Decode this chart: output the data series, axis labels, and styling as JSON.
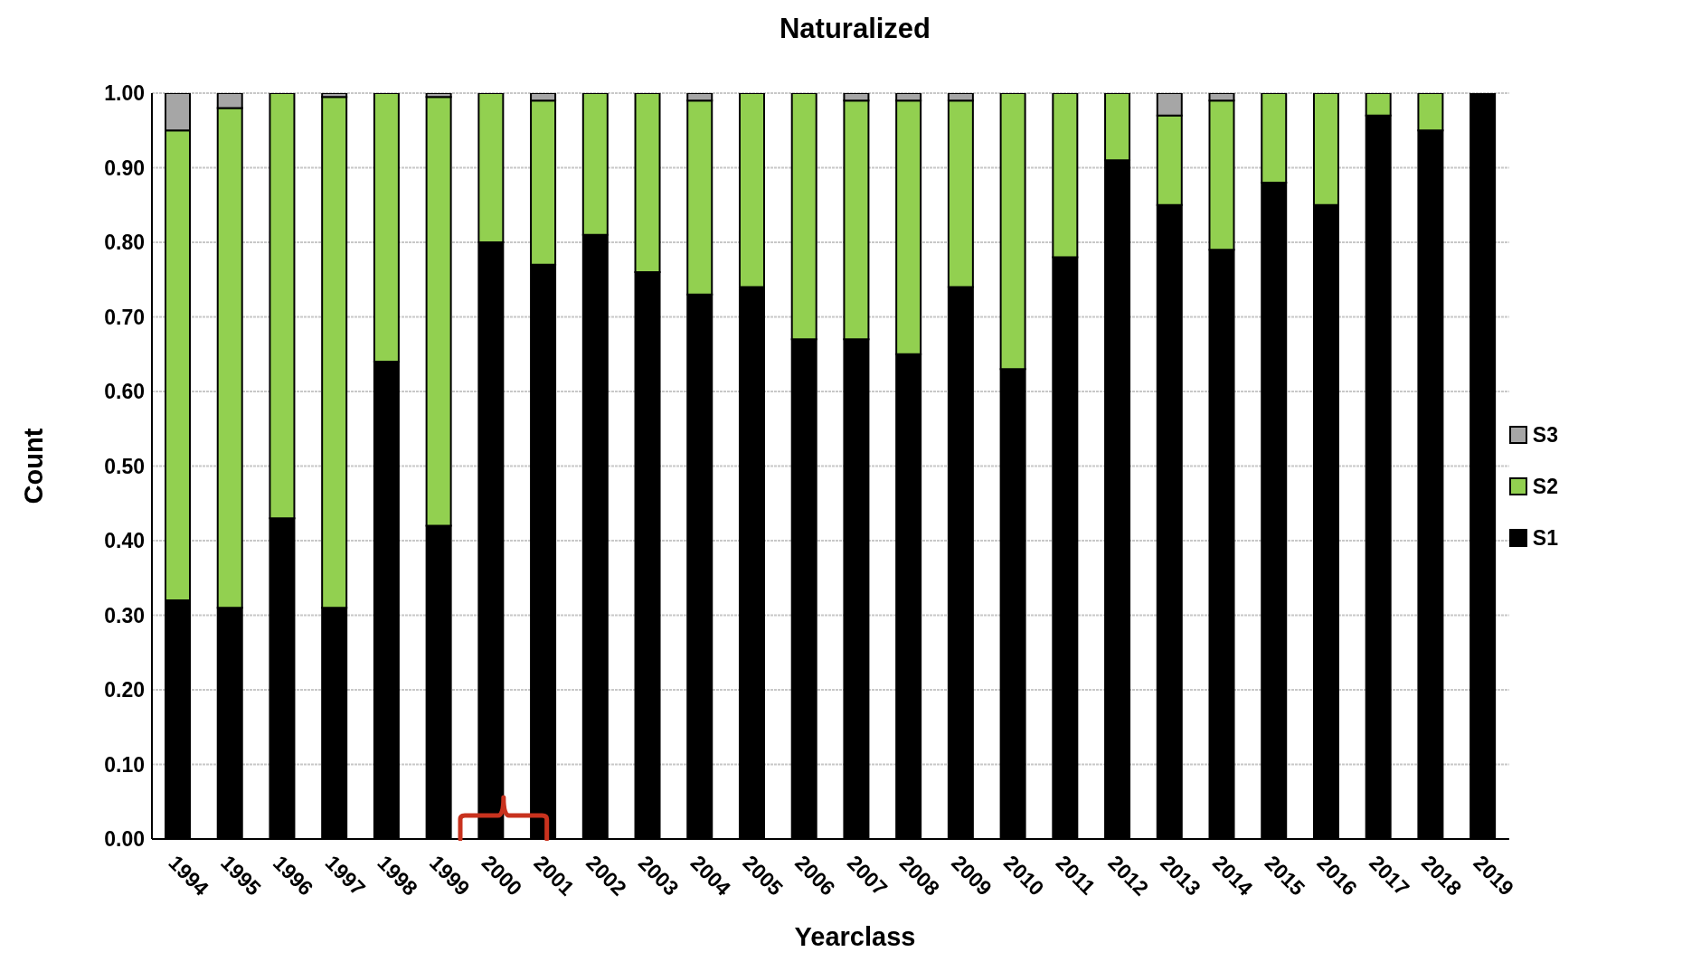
{
  "chart_data": {
    "type": "bar",
    "title": "Naturalized",
    "xlabel": "Yearclass",
    "ylabel": "Count",
    "categories": [
      "1994",
      "1995",
      "1996",
      "1997",
      "1998",
      "1999",
      "2000",
      "2001",
      "2002",
      "2003",
      "2004",
      "2005",
      "2006",
      "2007",
      "2008",
      "2009",
      "2010",
      "2011",
      "2012",
      "2013",
      "2014",
      "2015",
      "2016",
      "2017",
      "2018",
      "2019"
    ],
    "stacked": true,
    "series": [
      {
        "name": "S1",
        "color": "#000000",
        "values": [
          0.32,
          0.31,
          0.43,
          0.31,
          0.64,
          0.42,
          0.8,
          0.77,
          0.81,
          0.76,
          0.73,
          0.74,
          0.67,
          0.67,
          0.65,
          0.74,
          0.63,
          0.78,
          0.91,
          0.85,
          0.79,
          0.88,
          0.85,
          0.97,
          0.95,
          1
        ]
      },
      {
        "name": "S2",
        "color": "#92d050",
        "values": [
          0.63,
          0.67,
          0.57,
          0.685,
          0.36,
          0.575,
          0.2,
          0.22,
          0.19,
          0.24,
          0.26,
          0.26,
          0.33,
          0.32,
          0.34,
          0.25,
          0.37,
          0.22,
          0.09,
          0.12,
          0.2,
          0.12,
          0.15,
          0.03,
          0.05,
          0
        ]
      },
      {
        "name": "S3",
        "color": "#a6a6a6",
        "values": [
          0.05,
          0.02,
          0,
          0.005,
          0,
          0.005,
          0,
          0.01,
          0,
          0,
          0.01,
          0,
          0,
          0.01,
          0.01,
          0.01,
          0,
          0,
          0,
          0.03,
          0.01,
          0,
          0,
          0,
          0,
          0
        ]
      }
    ],
    "ylim": [
      0,
      1
    ],
    "yticks": [
      {
        "value": 0,
        "label": "0.00"
      },
      {
        "value": 0.1,
        "label": "0.10"
      },
      {
        "value": 0.2,
        "label": "0.20"
      },
      {
        "value": 0.3,
        "label": "0.30"
      },
      {
        "value": 0.4,
        "label": "0.40"
      },
      {
        "value": 0.5,
        "label": "0.50"
      },
      {
        "value": 0.6,
        "label": "0.60"
      },
      {
        "value": 0.7,
        "label": "0.70"
      },
      {
        "value": 0.8,
        "label": "0.80"
      },
      {
        "value": 0.9,
        "label": "0.90"
      },
      {
        "value": 1,
        "label": "1.00"
      }
    ],
    "grid": "y",
    "legend": "right"
  }
}
